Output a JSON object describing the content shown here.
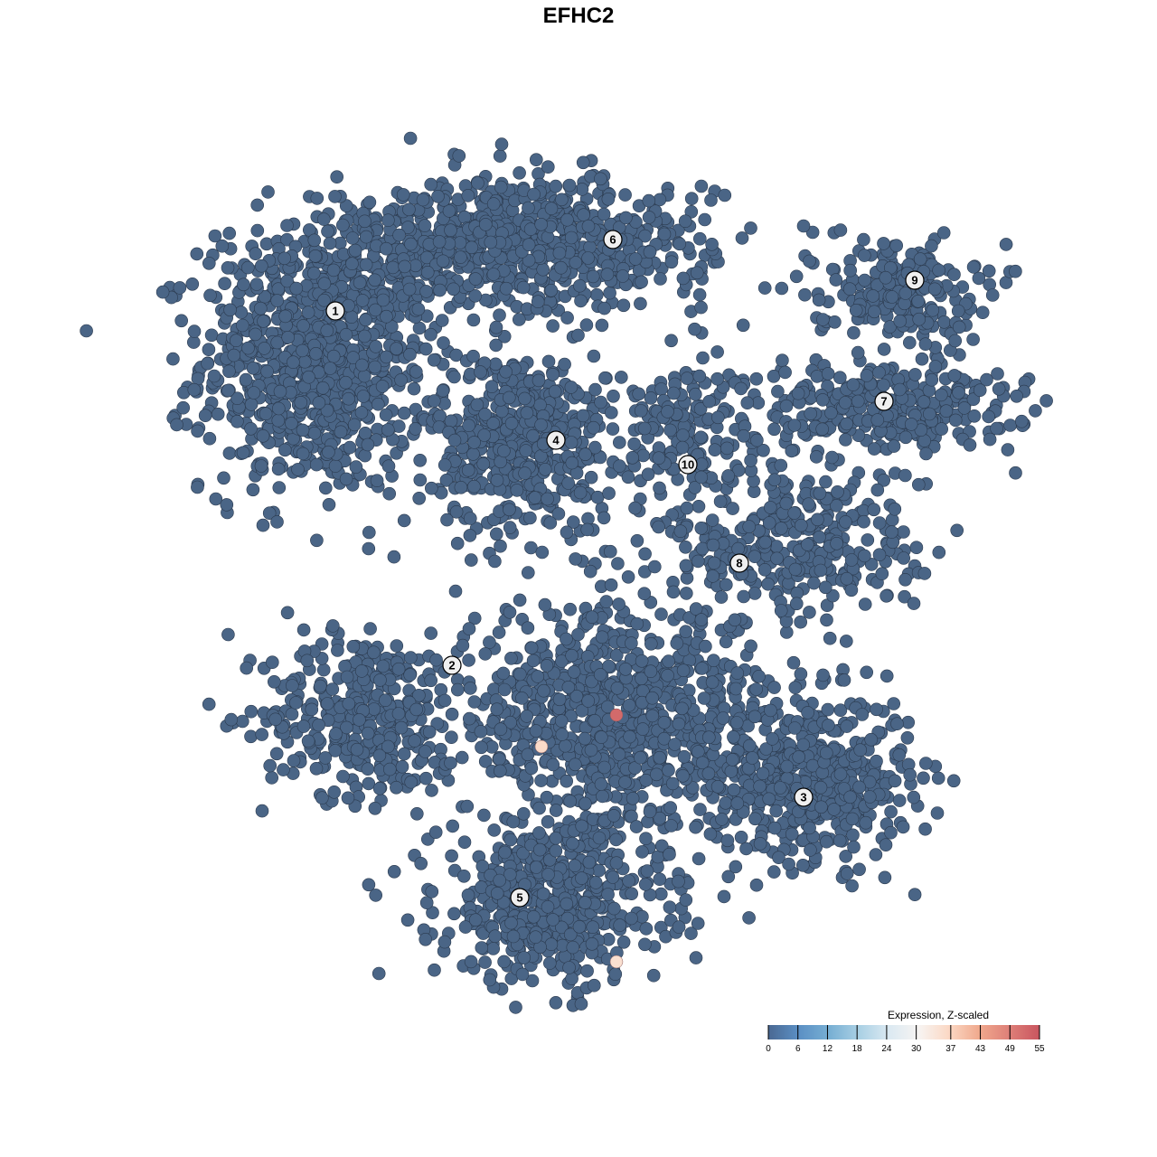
{
  "chart_data": {
    "type": "scatter",
    "title": "EFHC2",
    "xlabel": "",
    "ylabel": "",
    "xlim": [
      -50,
      50
    ],
    "ylim": [
      -50,
      50
    ],
    "grid": false,
    "base_point_value": 0,
    "clusters": [
      {
        "label": "1",
        "label_pos": [
          -28.9,
          29.6
        ],
        "components": [
          {
            "center": [
              -31,
              24
            ],
            "sd": [
              7,
              8
            ],
            "n": 900
          }
        ]
      },
      {
        "label": "2",
        "label_pos": [
          -16,
          -9.6
        ],
        "components": [
          {
            "center": [
              -26,
              -15
            ],
            "sd": [
              6,
              5
            ],
            "n": 350
          }
        ]
      },
      {
        "label": "3",
        "label_pos": [
          22.9,
          -24.2
        ],
        "components": [
          {
            "center": [
              24,
              -22
            ],
            "sd": [
              6,
              5
            ],
            "n": 500
          }
        ]
      },
      {
        "label": "4",
        "label_pos": [
          -4.5,
          15.3
        ],
        "components": [
          {
            "center": [
              -8,
              15
            ],
            "sd": [
              5.5,
              5.5
            ],
            "n": 500
          }
        ]
      },
      {
        "label": "5",
        "label_pos": [
          -8.5,
          -35.3
        ],
        "components": [
          {
            "center": [
              -5,
              -36
            ],
            "sd": [
              7,
              5
            ],
            "n": 500
          },
          {
            "center": [
              2,
              -16
            ],
            "sd": [
              10,
              7
            ],
            "n": 900
          }
        ]
      },
      {
        "label": "6",
        "label_pos": [
          1.8,
          37.5
        ],
        "components": [
          {
            "center": [
              -9,
              37
            ],
            "sd": [
              12,
              4
            ],
            "n": 800
          }
        ]
      },
      {
        "label": "7",
        "label_pos": [
          31.8,
          19.6
        ],
        "components": [
          {
            "center": [
              32,
              19
            ],
            "sd": [
              8,
              3
            ],
            "n": 300
          }
        ]
      },
      {
        "label": "8",
        "label_pos": [
          15.8,
          1.7
        ],
        "components": [
          {
            "center": [
              22,
              4
            ],
            "sd": [
              8,
              5
            ],
            "n": 350
          }
        ]
      },
      {
        "label": "9",
        "label_pos": [
          35.2,
          33
        ],
        "components": [
          {
            "center": [
              33,
              32
            ],
            "sd": [
              5,
              3
            ],
            "n": 200
          }
        ]
      },
      {
        "label": "10",
        "label_pos": [
          10.1,
          12.6
        ],
        "components": [
          {
            "center": [
              10,
              17
            ],
            "sd": [
              5,
              4
            ],
            "n": 150
          }
        ]
      }
    ],
    "highlighted_points": [
      {
        "x": 2.2,
        "y": -15.1,
        "value": 52
      },
      {
        "x": -6.1,
        "y": -18.6,
        "value": 36
      },
      {
        "x": 2.2,
        "y": -42.4,
        "value": 35
      }
    ],
    "legend": {
      "title": "Expression, Z-scaled",
      "placement": "bottom-right",
      "ticks": [
        "0",
        "6",
        "12",
        "18",
        "24",
        "30",
        "37",
        "43",
        "49",
        "55"
      ],
      "range": [
        0,
        55
      ],
      "colors": [
        "#4a6892",
        "#5b8fc4",
        "#76aed3",
        "#a9d0e4",
        "#dbe9f2",
        "#f7f4f2",
        "#fbd8c4",
        "#f0a98d",
        "#de7f78",
        "#c9555f"
      ]
    },
    "point_color": "#4a6586",
    "point_stroke": "#2b3a4e"
  }
}
